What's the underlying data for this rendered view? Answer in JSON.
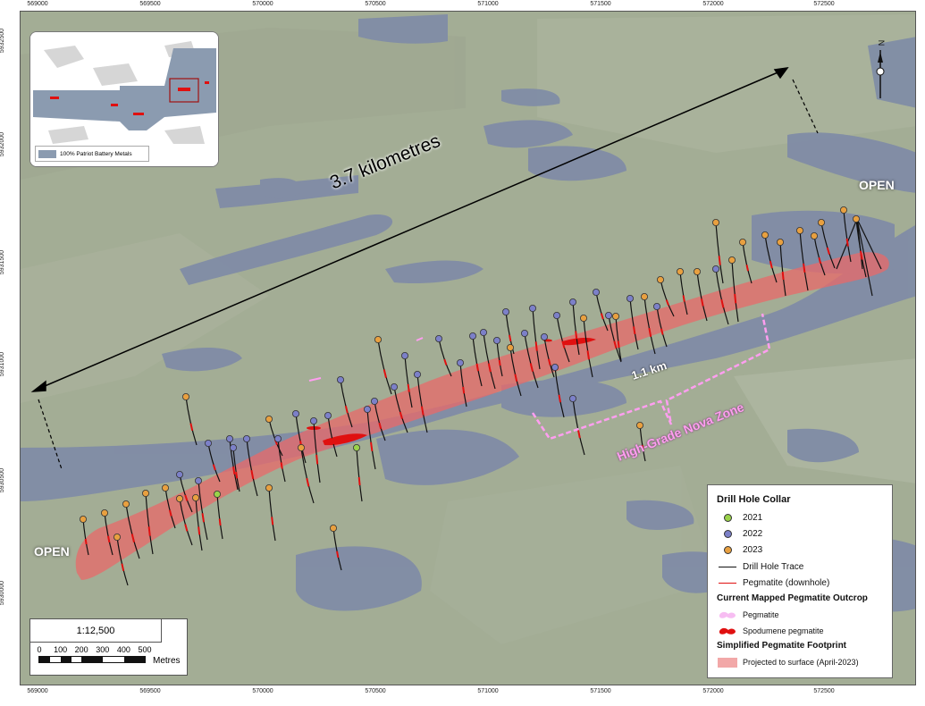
{
  "map": {
    "distance_label": "3.7 kilometres",
    "open_east": "OPEN",
    "open_west": "OPEN",
    "km_label": "1.1 km",
    "zone_label": "High-Grade Nova Zone"
  },
  "axes": {
    "x_ticks": [
      "569000",
      "569500",
      "570000",
      "570500",
      "571000",
      "571500",
      "572000",
      "572500"
    ],
    "y_ticks": [
      "5932500",
      "5932000",
      "5931500",
      "5931000",
      "5930500",
      "5930000"
    ]
  },
  "inset": {
    "legend": "100% Patriot Battery Metals"
  },
  "legend": {
    "collar_title": "Drill Hole Collar",
    "y2021": "2021",
    "y2022": "2022",
    "y2023": "2023",
    "trace": "Drill Hole Trace",
    "peg_down": "Pegmatite (downhole)",
    "outcrop_title": "Current Mapped Pegmatite Outcrop",
    "pegmatite": "Pegmatite",
    "spodumene": "Spodumene pegmatite",
    "footprint_title": "Simplified Pegmatite Footprint",
    "projected": "Projected to surface (April-2023)"
  },
  "scale": {
    "ratio": "1:12,500",
    "ticks": [
      "0",
      "100",
      "200",
      "300",
      "400",
      "500"
    ],
    "unit": "Metres"
  },
  "colors": {
    "c2021": "#9ad24a",
    "c2022": "#7c80c8",
    "c2023": "#e8a040",
    "footprint": "#e86a6a",
    "pegmatite_outline": "#ff9ef0",
    "spodumene": "#e01010",
    "water": "#6f7d9a",
    "land": "#97a287"
  }
}
